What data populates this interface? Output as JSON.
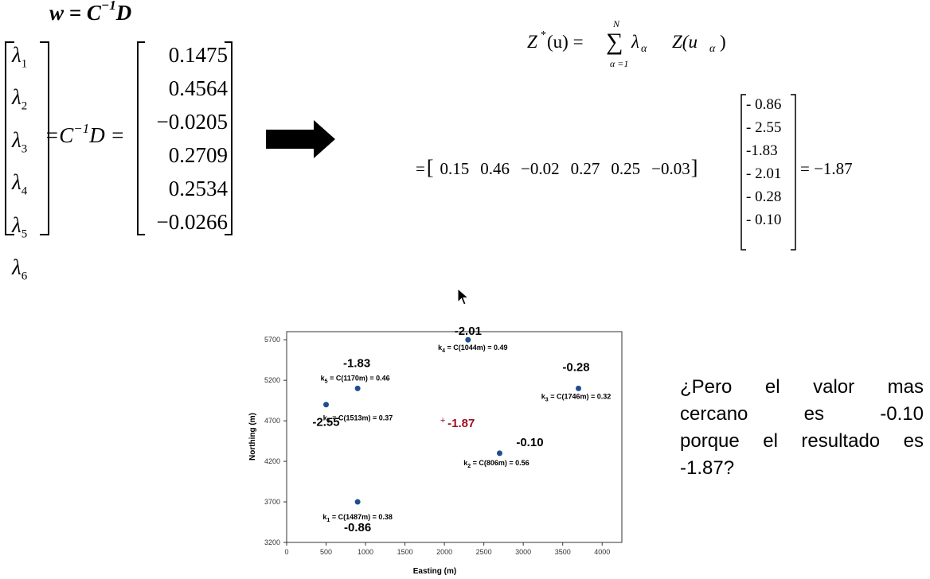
{
  "left_equation": {
    "title": {
      "base": "w = C",
      "sup": "−1",
      "tail": "D"
    },
    "lambdas": [
      {
        "sym": "λ",
        "sub": "1"
      },
      {
        "sym": "λ",
        "sub": "2"
      },
      {
        "sym": "λ",
        "sub": "3"
      },
      {
        "sym": "λ",
        "sub": "4"
      },
      {
        "sym": "λ",
        "sub": "5"
      },
      {
        "sym": "λ",
        "sub": "6"
      }
    ],
    "middle": {
      "pre": "=C",
      "sup": "−1",
      "post": "D ="
    },
    "weights": [
      "0.1475",
      "0.4564",
      "−0.0205",
      "0.2709",
      "0.2534",
      "−0.0266"
    ]
  },
  "right_equation": {
    "formula": {
      "lhs_Z": "Z",
      "lhs_star": "*",
      "lhs_arg": "(u) =",
      "sum_top": "N",
      "sum_sign": "∑",
      "sum_bottom": "α =1",
      "lambda": "λ",
      "lambda_sub": "α",
      "Z": "Z(u",
      "Z_sub": "α",
      "close": ")"
    },
    "row_prefix": "=",
    "row_values": [
      "0.15",
      "0.46",
      "−0.02",
      "0.27",
      "0.25",
      "−0.03"
    ],
    "column_values": [
      "- 0.86",
      "- 2.55",
      "-1.83",
      "- 2.01",
      "- 0.28",
      "- 0.10"
    ],
    "result": "= −1.87"
  },
  "question": {
    "lines": [
      "¿Pero el valor mas",
      "cercano es -0.10",
      "porque el resultado es",
      "-1.87?"
    ]
  },
  "chart_data": {
    "type": "scatter",
    "xlabel": "Easting (m)",
    "ylabel": "Northing (m)",
    "xlim": [
      0,
      4250
    ],
    "ylim": [
      3200,
      5800
    ],
    "xticks": [
      0,
      500,
      1000,
      1500,
      2000,
      2500,
      3000,
      3500,
      4000
    ],
    "yticks": [
      3200,
      3700,
      4200,
      4700,
      5200,
      5700
    ],
    "grid": false,
    "point_color": "#1f4e8c",
    "estimate_color": "#a01020",
    "points": [
      {
        "x": 900,
        "y": 3700,
        "value": "-0.86",
        "k": "k",
        "k_sub": "1",
        "k_text": " = C(1487m) = 0.38"
      },
      {
        "x": 2700,
        "y": 4300,
        "value": "-0.10",
        "k": "k",
        "k_sub": "2",
        "k_text": " = C(806m) = 0.56"
      },
      {
        "x": 3700,
        "y": 5100,
        "value": "-0.28",
        "k": "k",
        "k_sub": "3",
        "k_text": " = C(1746m) = 0.32"
      },
      {
        "x": 2300,
        "y": 5700,
        "value": "-2.01",
        "k": "k",
        "k_sub": "4",
        "k_text": " = C(1044m) = 0.49"
      },
      {
        "x": 900,
        "y": 5100,
        "value": "-1.83",
        "k": "k",
        "k_sub": "5",
        "k_text": " = C(1170m) = 0.46"
      },
      {
        "x": 500,
        "y": 4900,
        "value": "-2.55",
        "k": "k",
        "k_sub": "6",
        "k_text": " = C(1513m) = 0.37"
      }
    ],
    "estimate": {
      "x": 2000,
      "y": 4700,
      "marker": "+",
      "value": "-1.87"
    }
  }
}
